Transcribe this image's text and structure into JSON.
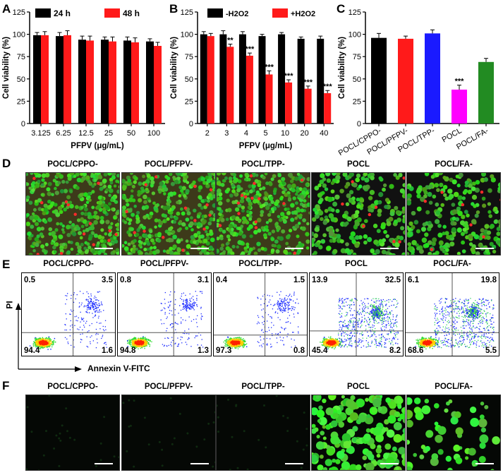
{
  "panels": {
    "A": "A",
    "B": "B",
    "C": "C",
    "D": "D",
    "E": "E",
    "F": "F"
  },
  "chart_data": [
    {
      "type": "bar",
      "ylabel": "Cell viability (%)",
      "xlabel": "PFPV (μg/mL)",
      "categories": [
        "3.125",
        "6.25",
        "12.5",
        "25",
        "50",
        "100"
      ],
      "series": [
        {
          "name": "24 h",
          "color": "#000000",
          "values": [
            99,
            98,
            94,
            94,
            93,
            92
          ],
          "err": [
            3,
            4,
            4,
            3,
            4,
            3
          ]
        },
        {
          "name": "48 h",
          "color": "#ff1a1a",
          "values": [
            99,
            99,
            93,
            92,
            91,
            87
          ],
          "err": [
            4,
            5,
            5,
            5,
            5,
            4
          ]
        }
      ],
      "ylim": [
        0,
        125
      ],
      "yticks": [
        "0",
        "25",
        "50",
        "75",
        "100",
        "125"
      ]
    },
    {
      "type": "bar",
      "ylabel": "Cell viability (%)",
      "xlabel": "PFPV (μg/mL)",
      "categories": [
        "2",
        "3",
        "4",
        "5",
        "10",
        "20",
        "40"
      ],
      "series": [
        {
          "name": "-H2O2",
          "color": "#000000",
          "values": [
            100,
            100,
            100,
            98,
            100,
            95,
            95
          ],
          "err": [
            3,
            4,
            3,
            2,
            2,
            2,
            3
          ]
        },
        {
          "name": "+H2O2",
          "color": "#ff1a1a",
          "values": [
            98,
            86,
            76,
            55,
            46,
            39,
            34
          ],
          "err": [
            3,
            3,
            3,
            4,
            3,
            3,
            3
          ]
        }
      ],
      "sig": [
        "",
        "**",
        "***",
        "***",
        "***",
        "***",
        "***"
      ],
      "ylim": [
        0,
        125
      ],
      "yticks": [
        "0",
        "25",
        "50",
        "75",
        "100",
        "125"
      ]
    },
    {
      "type": "bar",
      "ylabel": "Cell viability (%)",
      "categories": [
        "POCL/CPPO-",
        "POCL/PFPV-",
        "POCL/TPP-",
        "POCL",
        "POCL/FA-"
      ],
      "values": [
        96,
        95,
        101,
        38,
        69
      ],
      "err": [
        5,
        3,
        4,
        5,
        4
      ],
      "colors": [
        "#000000",
        "#ff1a1a",
        "#1a1aff",
        "#ff00ff",
        "#228b22"
      ],
      "sig": [
        "",
        "",
        "",
        "***",
        ""
      ],
      "ylim": [
        0,
        125
      ],
      "yticks": [
        "0",
        "25",
        "50",
        "75",
        "100",
        "125"
      ]
    }
  ],
  "labels": {
    "d_titles": [
      "POCL/CPPO-",
      "POCL/PFPV-",
      "POCL/TPP-",
      "POCL",
      "POCL/FA-"
    ],
    "e_titles": [
      "POCL/CPPO-",
      "POCL/PFPV-",
      "POCL/TPP-",
      "POCL",
      "POCL/FA-"
    ],
    "f_titles": [
      "POCL/CPPO-",
      "POCL/PFPV-",
      "POCL/TPP-",
      "POCL",
      "POCL/FA-"
    ],
    "e_yaxis": "PI",
    "e_xaxis": "Annexin V-FITC"
  },
  "flow_quadrants": [
    {
      "ul": "0.5",
      "ur": "3.5",
      "ll": "94.4",
      "lr": "1.6"
    },
    {
      "ul": "0.8",
      "ur": "3.1",
      "ll": "94.8",
      "lr": "1.3"
    },
    {
      "ul": "0.4",
      "ur": "1.5",
      "ll": "97.3",
      "lr": "0.8"
    },
    {
      "ul": "13.9",
      "ur": "32.5",
      "ll": "45.4",
      "lr": "8.2"
    },
    {
      "ul": "6.1",
      "ur": "19.8",
      "ll": "68.6",
      "lr": "5.5"
    }
  ],
  "colors": {
    "green_cells": "#33cc33",
    "dead_cells": "#ff2222"
  }
}
